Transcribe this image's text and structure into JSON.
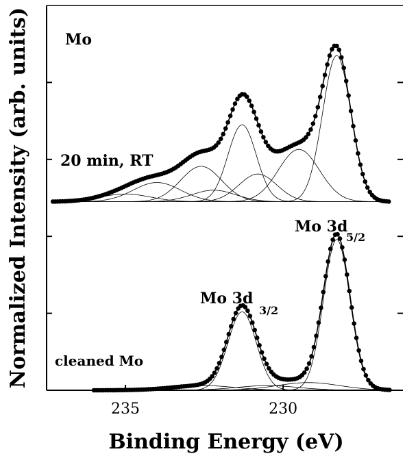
{
  "chart_data": {
    "type": "line",
    "xlabel": "Binding Energy (eV)",
    "ylabel": "Normalized Intensity (arb. units)",
    "xlim": [
      237.5,
      226.2
    ],
    "x_reversed": true,
    "ylim": [
      0,
      5
    ],
    "xticks": [
      235,
      230
    ],
    "yticks": [
      1,
      2,
      3,
      4
    ],
    "grid": false,
    "panels": [
      {
        "label": "Mo",
        "sublabel": "20 min, RT",
        "baseline": 2.45,
        "peaks": [
          {
            "center": 228.3,
            "height": 1.9,
            "width": 0.45
          },
          {
            "center": 229.5,
            "height": 0.68,
            "width": 0.65
          },
          {
            "center": 230.8,
            "height": 0.36,
            "width": 0.6
          },
          {
            "center": 231.3,
            "height": 1.0,
            "width": 0.45
          },
          {
            "center": 232.2,
            "height": 0.15,
            "width": 0.7
          },
          {
            "center": 232.6,
            "height": 0.46,
            "width": 0.65
          },
          {
            "center": 234.0,
            "height": 0.25,
            "width": 0.75
          },
          {
            "center": 235.0,
            "height": 0.1,
            "width": 0.8
          }
        ]
      },
      {
        "label": "cleaned Mo",
        "baseline": 0.0,
        "peaks": [
          {
            "center": 228.3,
            "height": 1.96,
            "width": 0.42
          },
          {
            "center": 231.3,
            "height": 1.02,
            "width": 0.45
          },
          {
            "center": 229.2,
            "height": 0.1,
            "width": 1.0
          },
          {
            "center": 230.5,
            "height": 0.06,
            "width": 1.0
          },
          {
            "center": 232.5,
            "height": 0.06,
            "width": 1.0
          }
        ]
      }
    ],
    "annotations": [
      {
        "main": "Mo 3d",
        "sub": "5/2"
      },
      {
        "main": "Mo 3d",
        "sub": "3/2"
      }
    ]
  }
}
